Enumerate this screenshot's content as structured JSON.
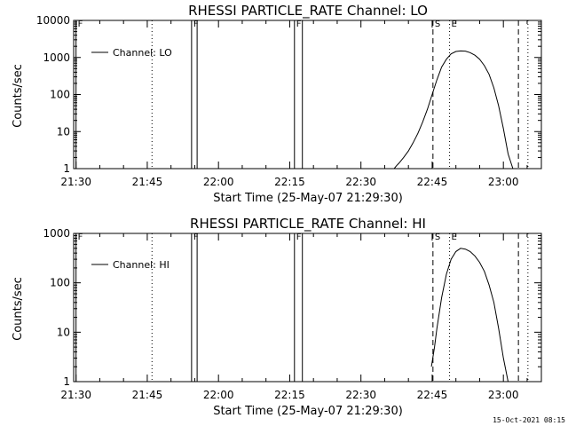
{
  "footer_timestamp": "15-Oct-2021 08:15",
  "chart_data": [
    {
      "type": "line",
      "title": "RHESSI PARTICLE_RATE Channel: LO",
      "xlabel": "Start Time (25-May-07 21:29:30)",
      "ylabel": "Counts/sec",
      "y_scale": "log",
      "ylim": [
        1,
        10000
      ],
      "xlim": [
        "21:29:30",
        "23:08:00"
      ],
      "x_ticks": [
        "21:30",
        "21:45",
        "22:00",
        "22:15",
        "22:30",
        "22:45",
        "23:00"
      ],
      "y_ticks": [
        "1",
        "10",
        "100",
        "1000",
        "10000"
      ],
      "legend": {
        "position": "top-left",
        "entries": [
          "Channel: LO"
        ]
      },
      "series": [
        {
          "name": "Channel: LO",
          "x": [
            "22:37:00",
            "22:37:30",
            "22:38:00",
            "22:39:00",
            "22:40:00",
            "22:41:00",
            "22:42:00",
            "22:43:00",
            "22:44:00",
            "22:45:00",
            "22:46:00",
            "22:47:00",
            "22:48:00",
            "22:49:00",
            "22:50:00",
            "22:51:00",
            "22:52:00",
            "22:53:00",
            "22:54:00",
            "22:55:00",
            "22:56:00",
            "22:57:00",
            "22:58:00",
            "22:59:00",
            "23:00:00",
            "23:01:00",
            "23:02:00"
          ],
          "y": [
            1,
            1.2,
            1.4,
            2,
            3,
            5,
            9,
            18,
            40,
            100,
            250,
            550,
            900,
            1250,
            1450,
            1500,
            1480,
            1350,
            1150,
            900,
            600,
            350,
            150,
            50,
            12,
            2.5,
            1
          ]
        }
      ],
      "markers": [
        {
          "label": "F",
          "time": "21:30:00",
          "style": "solid"
        },
        {
          "label": "F",
          "time": "21:54:20",
          "style": "solid"
        },
        {
          "label": "",
          "time": "21:55:30",
          "style": "solid"
        },
        {
          "label": "F",
          "time": "22:16:00",
          "style": "solid"
        },
        {
          "label": "",
          "time": "22:17:40",
          "style": "solid"
        },
        {
          "label": "S",
          "time": "22:45:10",
          "style": "dashed"
        },
        {
          "label": "E",
          "time": "22:48:40",
          "style": "dotted"
        },
        {
          "label": "",
          "time": "23:03:10",
          "style": "dashed"
        },
        {
          "label": "",
          "time": "23:05:10",
          "style": "dotted"
        },
        {
          "label": "",
          "time": "21:46:00",
          "style": "dotted"
        }
      ]
    },
    {
      "type": "line",
      "title": "RHESSI PARTICLE_RATE Channel: HI",
      "xlabel": "Start Time (25-May-07 21:29:30)",
      "ylabel": "Counts/sec",
      "y_scale": "log",
      "ylim": [
        1,
        1000
      ],
      "xlim": [
        "21:29:30",
        "23:08:00"
      ],
      "x_ticks": [
        "21:30",
        "21:45",
        "22:00",
        "22:15",
        "22:30",
        "22:45",
        "23:00"
      ],
      "y_ticks": [
        "1",
        "10",
        "100",
        "1000"
      ],
      "legend": {
        "position": "top-left",
        "entries": [
          "Channel: HI"
        ]
      },
      "series": [
        {
          "name": "Channel: HI",
          "x": [
            "22:44:50",
            "22:45:30",
            "22:46:00",
            "22:47:00",
            "22:48:00",
            "22:49:00",
            "22:50:00",
            "22:51:00",
            "22:52:00",
            "22:53:00",
            "22:54:00",
            "22:55:00",
            "22:56:00",
            "22:57:00",
            "22:58:00",
            "22:59:00",
            "23:00:00",
            "23:01:00"
          ],
          "y": [
            2,
            5,
            12,
            50,
            150,
            300,
            430,
            500,
            480,
            430,
            350,
            260,
            170,
            90,
            40,
            12,
            3,
            1
          ]
        }
      ],
      "markers": [
        {
          "label": "F",
          "time": "21:30:00",
          "style": "solid"
        },
        {
          "label": "F",
          "time": "21:54:20",
          "style": "solid"
        },
        {
          "label": "",
          "time": "21:55:30",
          "style": "solid"
        },
        {
          "label": "F",
          "time": "22:16:00",
          "style": "solid"
        },
        {
          "label": "",
          "time": "22:17:40",
          "style": "solid"
        },
        {
          "label": "S",
          "time": "22:45:10",
          "style": "dashed"
        },
        {
          "label": "E",
          "time": "22:48:40",
          "style": "dotted"
        },
        {
          "label": "",
          "time": "23:03:10",
          "style": "dashed"
        },
        {
          "label": "",
          "time": "23:05:10",
          "style": "dotted"
        },
        {
          "label": "",
          "time": "21:46:00",
          "style": "dotted"
        }
      ]
    }
  ]
}
